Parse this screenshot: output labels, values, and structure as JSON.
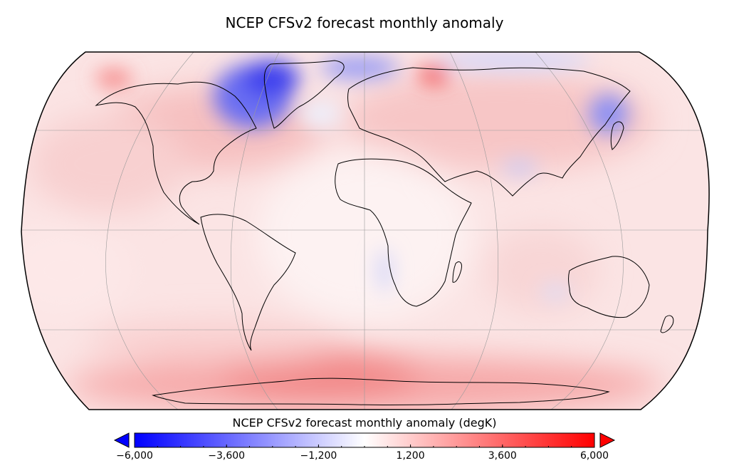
{
  "title": "NCEP CFSv2 forecast monthly anomaly",
  "colorbar": {
    "label": "NCEP CFSv2 forecast monthly anomaly (degK)",
    "min": -6000,
    "max": 6000,
    "ticks": [
      {
        "value": -6000,
        "label": "−6,000"
      },
      {
        "value": -3600,
        "label": "−3,600"
      },
      {
        "value": -1200,
        "label": "−1,200"
      },
      {
        "value": 1200,
        "label": "1,200"
      },
      {
        "value": 3600,
        "label": "3,600"
      },
      {
        "value": 6000,
        "label": "6,000"
      }
    ],
    "colors": {
      "low": "#0000ff",
      "mid": "#ffffff",
      "high": "#ff0000"
    }
  },
  "map": {
    "projection": "Robinson",
    "features": [
      "coastlines",
      "graticule"
    ],
    "regions": {
      "greenland-labrador": "cool",
      "northeast-asia": "cool",
      "southern-ocean": "warm",
      "arctic-siberia": "warm",
      "land-masses": "mildly warm"
    }
  }
}
